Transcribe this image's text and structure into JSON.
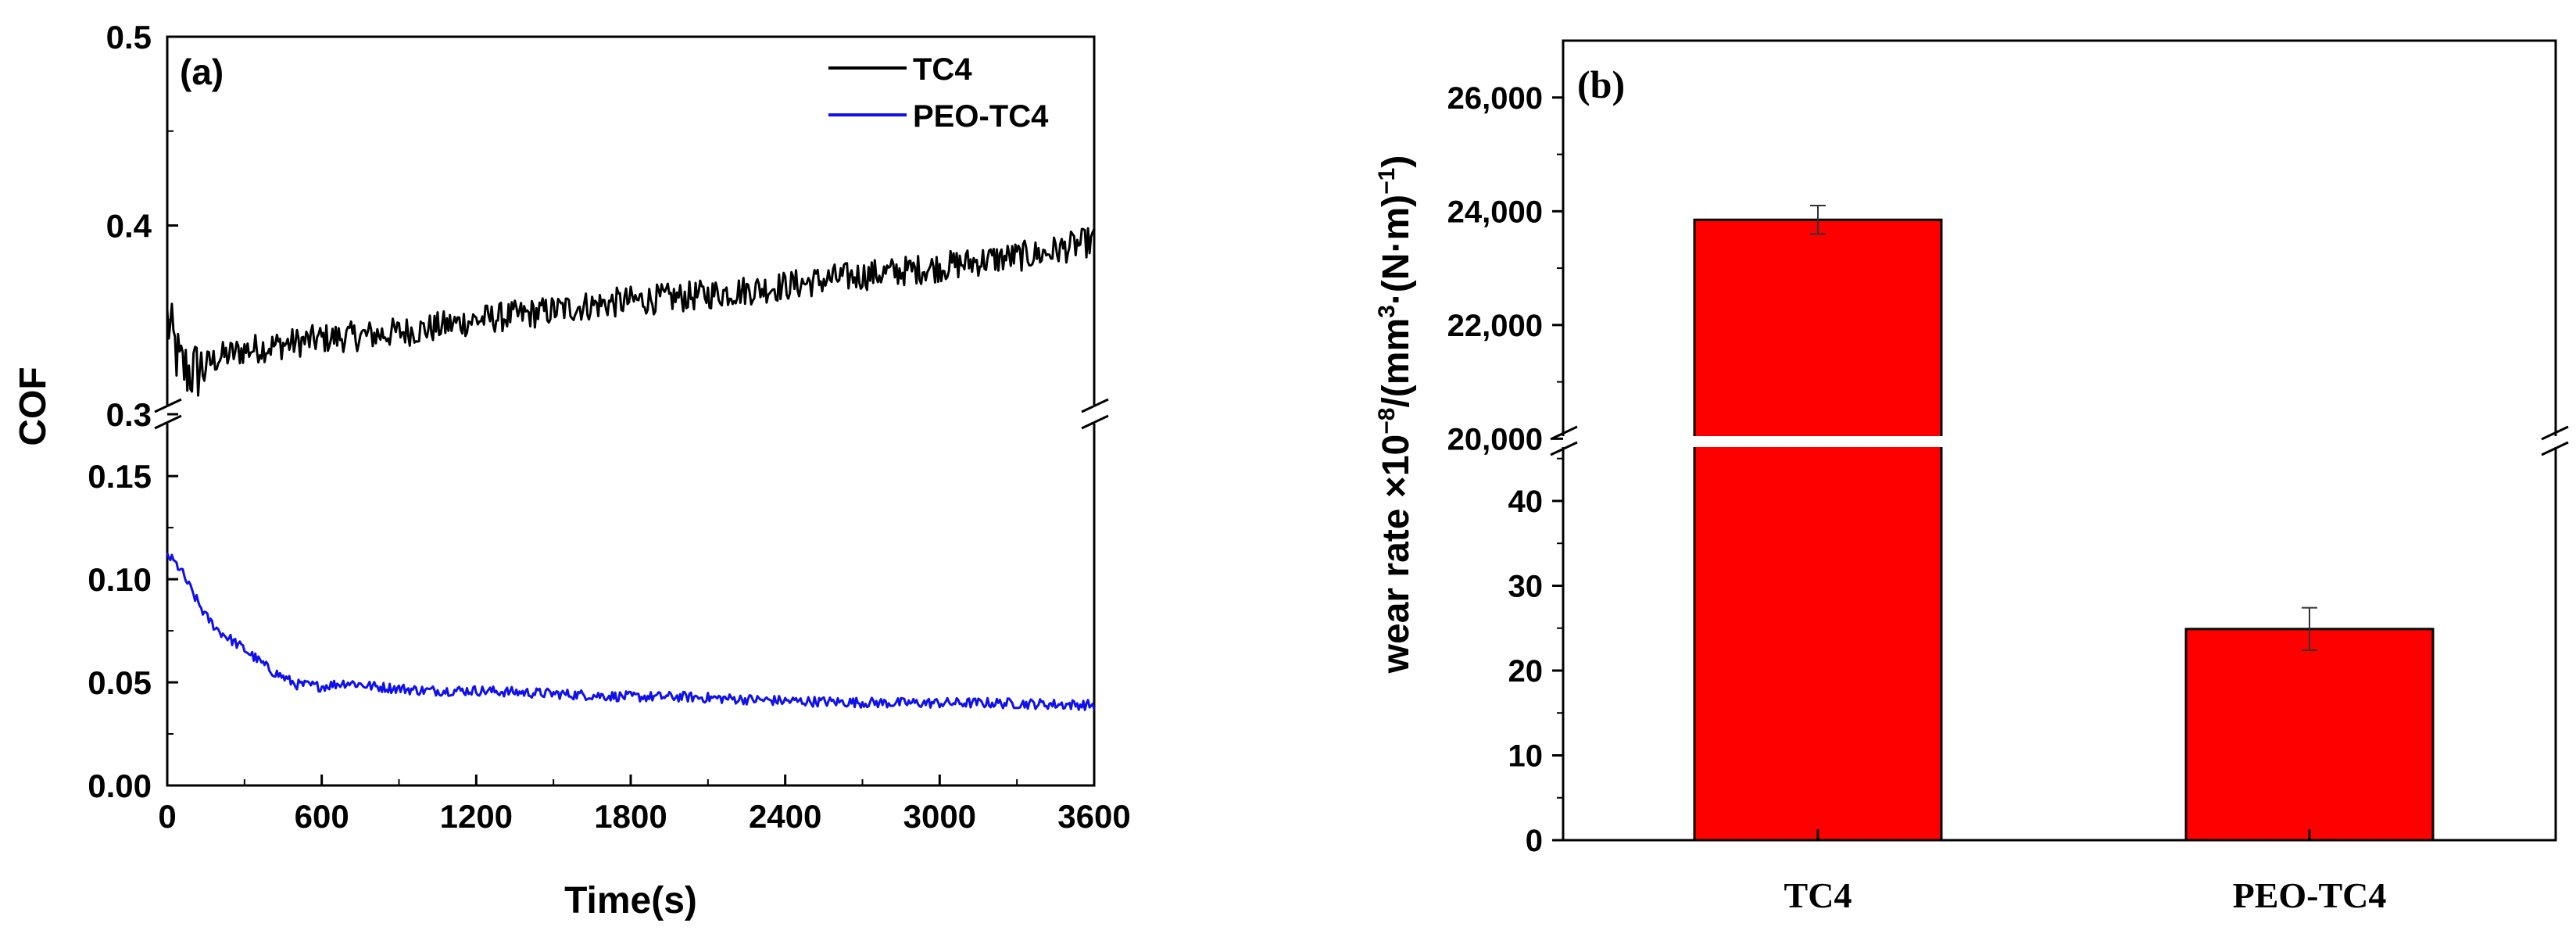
{
  "chart_data": [
    {
      "type": "line",
      "panel_label": "(a)",
      "xlabel": "Time(s)",
      "ylabel": "COF",
      "xlim": [
        0,
        3600
      ],
      "x_ticks": [
        "0",
        "600",
        "1200",
        "1800",
        "2400",
        "3000",
        "3600"
      ],
      "y_axis_break": true,
      "y_segments": [
        {
          "range": [
            0.3,
            0.5
          ],
          "ticks": [
            "0.3",
            "0.4",
            "0.5"
          ]
        },
        {
          "range": [
            0.0,
            0.18
          ],
          "ticks": [
            "0.00",
            "0.05",
            "0.10",
            "0.15"
          ]
        }
      ],
      "legend": "top-right",
      "series": [
        {
          "name": "TC4",
          "color": "#000000",
          "x": [
            0,
            50,
            100,
            200,
            300,
            400,
            600,
            800,
            1000,
            1200,
            1400,
            1600,
            1800,
            2000,
            2200,
            2400,
            2600,
            2800,
            3000,
            3200,
            3400,
            3600
          ],
          "values": [
            0.35,
            0.325,
            0.322,
            0.33,
            0.334,
            0.336,
            0.34,
            0.342,
            0.345,
            0.35,
            0.353,
            0.357,
            0.36,
            0.362,
            0.365,
            0.368,
            0.372,
            0.375,
            0.378,
            0.382,
            0.385,
            0.392
          ],
          "noise": 0.008
        },
        {
          "name": "PEO-TC4",
          "color": "#1010ee",
          "x": [
            0,
            50,
            100,
            150,
            200,
            300,
            400,
            500,
            600,
            700,
            800,
            1000,
            1200,
            1400,
            1600,
            1800,
            2000,
            2400,
            2800,
            3200,
            3600
          ],
          "values": [
            0.112,
            0.105,
            0.093,
            0.082,
            0.075,
            0.066,
            0.056,
            0.049,
            0.048,
            0.05,
            0.048,
            0.046,
            0.046,
            0.045,
            0.044,
            0.043,
            0.043,
            0.041,
            0.04,
            0.04,
            0.039
          ],
          "noise": 0.0025
        }
      ]
    },
    {
      "type": "bar",
      "panel_label": "(b)",
      "ylabel_main": "wear rate ×10",
      "ylabel_exp": "−8",
      "ylabel_unit1": "/(mm",
      "ylabel_exp2": "3",
      "ylabel_unit2": "·(N·m)",
      "ylabel_exp3": "−1",
      "ylabel_unit3": ")",
      "categories": [
        "TC4",
        "PEO-TC4"
      ],
      "values": [
        23850,
        24.9
      ],
      "errors": [
        250,
        2.5
      ],
      "bar_color": "#ff0000",
      "y_axis_break": true,
      "y_segments": [
        {
          "range": [
            0,
            47
          ],
          "ticks": [
            "0",
            "10",
            "20",
            "30",
            "40"
          ]
        },
        {
          "range": [
            19950,
            27000
          ],
          "ticks": [
            "20,000",
            "22,000",
            "24,000",
            "26,000"
          ]
        }
      ]
    }
  ]
}
